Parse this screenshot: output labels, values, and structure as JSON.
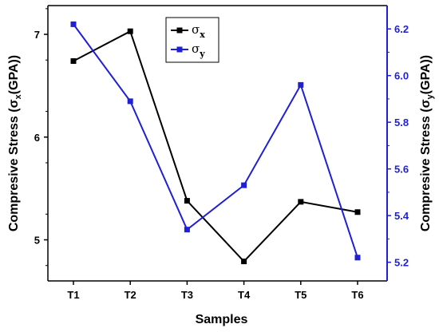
{
  "chart_data": {
    "type": "line",
    "categories": [
      "T1",
      "T2",
      "T3",
      "T4",
      "T5",
      "T6"
    ],
    "xlabel": "Samples",
    "ylabel_left": {
      "prefix": "Compresive Stress (",
      "symbol": "σ",
      "sub": "x",
      "suffix": "(GPA))"
    },
    "ylabel_right": {
      "prefix": "Compresive Stress (",
      "symbol": "σ",
      "sub": "y",
      "suffix": "(GPA))"
    },
    "y_left": {
      "min": 4.6,
      "max": 7.28,
      "ticks": [
        5,
        6,
        7
      ],
      "tick_labels": [
        "5",
        "6",
        "7"
      ]
    },
    "y_right": {
      "min": 5.12,
      "max": 6.3,
      "ticks": [
        5.2,
        5.4,
        5.6,
        5.8,
        6.0,
        6.2
      ],
      "tick_labels": [
        "5.2",
        "5.4",
        "5.6",
        "5.8",
        "6.0",
        "6.2"
      ]
    },
    "series": [
      {
        "name": "σx",
        "symbol": "σ",
        "sub": "x",
        "axis": "left",
        "color": "#000000",
        "values": [
          6.74,
          7.03,
          5.38,
          4.79,
          5.37,
          5.27
        ]
      },
      {
        "name": "σy",
        "symbol": "σ",
        "sub": "y",
        "axis": "right",
        "color": "#1f1fd6",
        "values": [
          6.22,
          5.89,
          5.34,
          5.53,
          5.96,
          5.22
        ]
      }
    ],
    "legend_position": "top-center",
    "grid": false
  }
}
